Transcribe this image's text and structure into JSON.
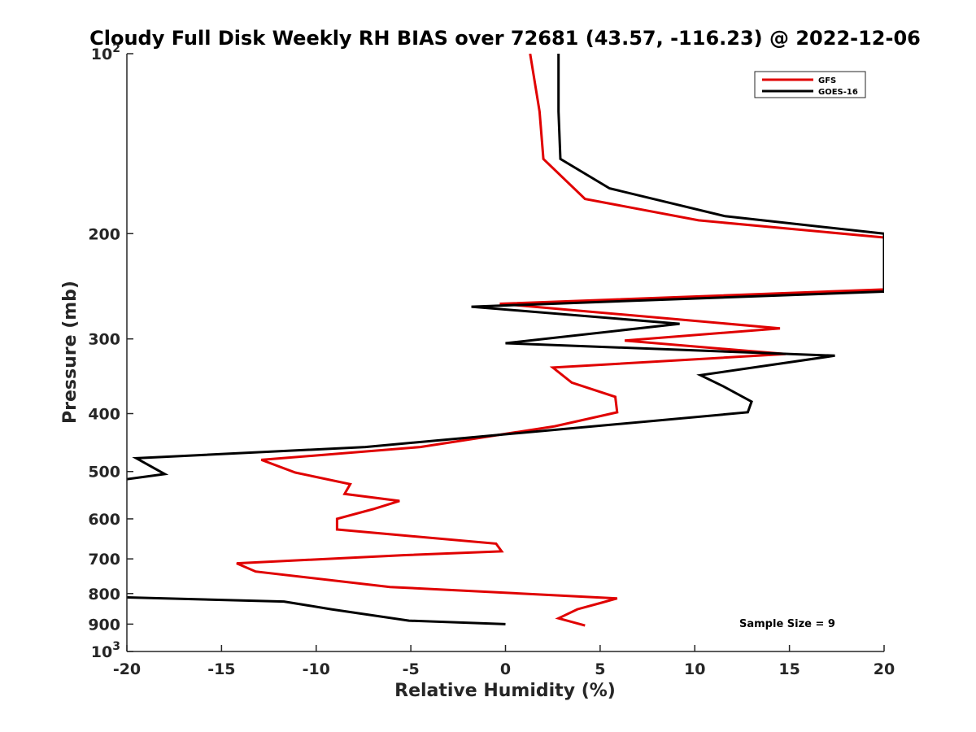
{
  "chart_data": {
    "type": "line",
    "title": "Cloudy Full Disk Weekly RH BIAS over 72681 (43.57, -116.23) @ 2022-12-06",
    "xlabel": "Relative Humidity (%)",
    "ylabel": "Pressure (mb)",
    "xlim": [
      -20,
      20
    ],
    "ylim": [
      100,
      1000
    ],
    "y_scale": "log",
    "y_reversed": true,
    "grid": false,
    "legend_position": "top-right",
    "x_ticks": [
      -20,
      -15,
      -10,
      -5,
      0,
      5,
      10,
      15,
      20
    ],
    "x_tick_labels": [
      "-20",
      "-15",
      "-10",
      "-5",
      "0",
      "5",
      "10",
      "15",
      "20"
    ],
    "y_ticks": [
      100,
      200,
      300,
      400,
      500,
      600,
      700,
      800,
      900,
      1000
    ],
    "y_tick_labels": [
      {
        "base": "10",
        "exp": "2"
      },
      {
        "base": "200",
        "exp": ""
      },
      {
        "base": "300",
        "exp": ""
      },
      {
        "base": "400",
        "exp": ""
      },
      {
        "base": "500",
        "exp": ""
      },
      {
        "base": "600",
        "exp": ""
      },
      {
        "base": "700",
        "exp": ""
      },
      {
        "base": "800",
        "exp": ""
      },
      {
        "base": "900",
        "exp": ""
      },
      {
        "base": "10",
        "exp": "3"
      }
    ],
    "annotation": "Sample Size = 9",
    "series": [
      {
        "name": "GFS",
        "color": "#e00000",
        "points": [
          {
            "x": 1.3,
            "y": 100
          },
          {
            "x": 1.8,
            "y": 125
          },
          {
            "x": 2.0,
            "y": 150
          },
          {
            "x": 4.2,
            "y": 175
          },
          {
            "x": 10.2,
            "y": 190
          },
          {
            "x": 20.0,
            "y": 203
          },
          {
            "x": 20.0,
            "y": 248
          },
          {
            "x": -0.3,
            "y": 262
          },
          {
            "x": 14.5,
            "y": 288
          },
          {
            "x": 6.3,
            "y": 302
          },
          {
            "x": 14.8,
            "y": 318
          },
          {
            "x": 2.5,
            "y": 335
          },
          {
            "x": 3.5,
            "y": 355
          },
          {
            "x": 5.8,
            "y": 375
          },
          {
            "x": 5.9,
            "y": 398
          },
          {
            "x": 2.6,
            "y": 420
          },
          {
            "x": -4.5,
            "y": 455
          },
          {
            "x": -12.9,
            "y": 478
          },
          {
            "x": -11.1,
            "y": 502
          },
          {
            "x": -8.2,
            "y": 525
          },
          {
            "x": -8.5,
            "y": 545
          },
          {
            "x": -5.6,
            "y": 560
          },
          {
            "x": -7.0,
            "y": 578
          },
          {
            "x": -8.9,
            "y": 600
          },
          {
            "x": -8.9,
            "y": 625
          },
          {
            "x": -5.3,
            "y": 640
          },
          {
            "x": -0.5,
            "y": 660
          },
          {
            "x": -0.2,
            "y": 680
          },
          {
            "x": -5.4,
            "y": 690
          },
          {
            "x": -14.2,
            "y": 712
          },
          {
            "x": -13.2,
            "y": 735
          },
          {
            "x": -6.1,
            "y": 780
          },
          {
            "x": 5.9,
            "y": 815
          },
          {
            "x": 5.0,
            "y": 830
          },
          {
            "x": 3.8,
            "y": 850
          },
          {
            "x": 2.8,
            "y": 880
          },
          {
            "x": 4.2,
            "y": 905
          }
        ]
      },
      {
        "name": "GOES-16",
        "color": "#000000",
        "points": [
          {
            "x": 2.8,
            "y": 100
          },
          {
            "x": 2.8,
            "y": 125
          },
          {
            "x": 2.9,
            "y": 150
          },
          {
            "x": 5.5,
            "y": 168
          },
          {
            "x": 11.6,
            "y": 187
          },
          {
            "x": 20.0,
            "y": 200
          },
          {
            "x": 20.0,
            "y": 250
          },
          {
            "x": -1.8,
            "y": 265
          },
          {
            "x": 9.2,
            "y": 283
          },
          {
            "x": 0.0,
            "y": 305
          },
          {
            "x": 17.4,
            "y": 320
          },
          {
            "x": 10.3,
            "y": 345
          },
          {
            "x": 11.5,
            "y": 360
          },
          {
            "x": 13.0,
            "y": 382
          },
          {
            "x": 12.8,
            "y": 398
          },
          {
            "x": -7.4,
            "y": 455
          },
          {
            "x": -19.5,
            "y": 475
          },
          {
            "x": -18.0,
            "y": 505
          },
          {
            "x": -20.0,
            "y": 515
          }
        ]
      },
      {
        "name": "GOES-16",
        "color": "#000000",
        "points": [
          {
            "x": -20.0,
            "y": 812
          },
          {
            "x": -11.7,
            "y": 825
          },
          {
            "x": -9.2,
            "y": 850
          },
          {
            "x": -5.1,
            "y": 888
          },
          {
            "x": 0.0,
            "y": 900
          }
        ]
      }
    ]
  }
}
